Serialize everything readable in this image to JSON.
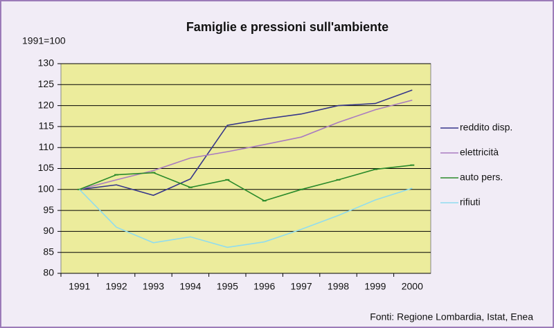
{
  "chart_data": {
    "type": "line",
    "title": "Famiglie e pressioni sull'ambiente",
    "y_label": "1991=100",
    "source": "Fonti: Regione Lombardia, Istat, Enea",
    "categories": [
      "1991",
      "1992",
      "1993",
      "1994",
      "1995",
      "1996",
      "1997",
      "1998",
      "1999",
      "2000"
    ],
    "series": [
      {
        "name": "reddito disp.",
        "color": "#35358a",
        "values": [
          100,
          101.1,
          98.6,
          102.5,
          115.3,
          116.8,
          118,
          120,
          120.5,
          123.7
        ]
      },
      {
        "name": "elettricità",
        "color": "#a97bc0",
        "values": [
          100,
          102.3,
          104.5,
          107.5,
          109,
          110.7,
          112.5,
          116,
          119,
          121.3
        ]
      },
      {
        "name": "auto pers.",
        "color": "#2a8a2a",
        "values": [
          100,
          103.5,
          104,
          100.5,
          102.3,
          97.3,
          100,
          102.3,
          104.8,
          105.8
        ],
        "markers": true
      },
      {
        "name": "rifiuti",
        "color": "#8fdcef",
        "values": [
          100,
          91,
          87.3,
          88.7,
          86.2,
          87.5,
          90.5,
          93.8,
          97.5,
          100.3
        ]
      }
    ],
    "ylim": [
      80,
      130
    ],
    "yticks": [
      80,
      85,
      90,
      95,
      100,
      105,
      110,
      115,
      120,
      125,
      130
    ],
    "grid": true,
    "legend": "right"
  }
}
